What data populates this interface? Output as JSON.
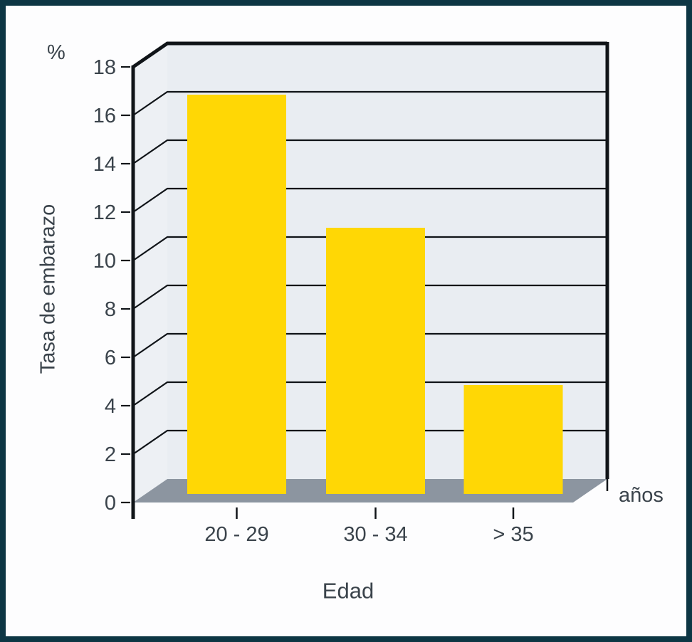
{
  "chart_data": {
    "type": "bar",
    "categories": [
      "20 - 29",
      "30 - 34",
      "> 35"
    ],
    "values": [
      16.5,
      11.0,
      4.5
    ],
    "title": "",
    "xlabel": "Edad",
    "xlabel_unit": "años",
    "ylabel": "Tasa de embarazo",
    "ylabel_unit": "%",
    "ylim": [
      0,
      18
    ],
    "yticks": [
      0,
      2,
      4,
      6,
      8,
      10,
      12,
      14,
      16,
      18
    ],
    "grid": true,
    "legend": false,
    "style": "3d-walls-perspective",
    "colors": {
      "bar": "#ffd705",
      "back_wall": "#e9edf2",
      "left_wall": "#edf0f4",
      "floor": "#8c95a0",
      "line": "#101418",
      "text": "#3a434b",
      "frame": "#0d3644",
      "background": "#fdfdfe"
    }
  }
}
